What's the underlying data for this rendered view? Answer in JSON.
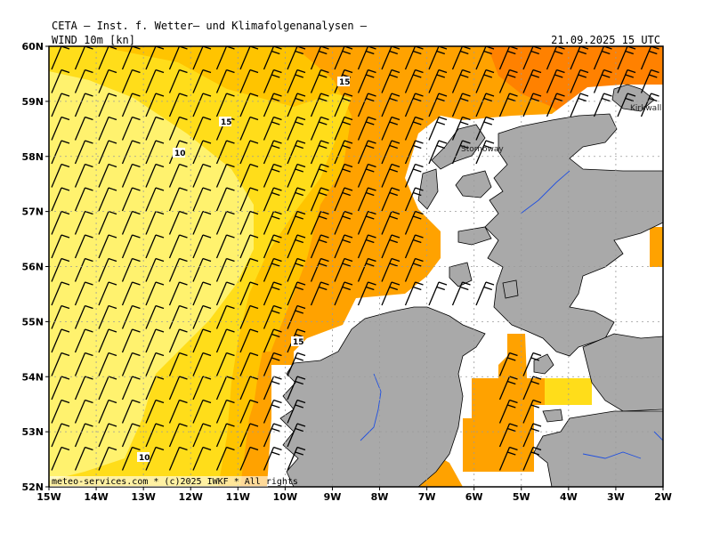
{
  "header": {
    "title": "CETA – Inst. f. Wetter– und Klimafolgenanalysen –",
    "subtitle": "WIND 10m [kn]",
    "valid_time": "21.09.2025 15 UTC"
  },
  "credit": "meteo-services.com * (c)2025 IWKF * All rights",
  "axes": {
    "lat_labels": [
      "60N",
      "59N",
      "58N",
      "57N",
      "56N",
      "55N",
      "54N",
      "53N",
      "52N"
    ],
    "lon_labels": [
      "15W",
      "14W",
      "13W",
      "12W",
      "11W",
      "10W",
      "9W",
      "8W",
      "7W",
      "6W",
      "5W",
      "4W",
      "3W",
      "2W"
    ]
  },
  "contour_labels": [
    "15",
    "15",
    "10",
    "15",
    "10"
  ],
  "places": [
    "Stornoway",
    "Kirkwall"
  ],
  "colors": {
    "band_5_10": "#fff26e",
    "band_10_15": "#ffdd1a",
    "band_15_20": "#ffc400",
    "band_20_25": "#ffa200",
    "band_25_30": "#ff8100",
    "land": "#a9a9a9",
    "water_line": "#2050e0",
    "grid": "#9a9a9a",
    "barb": "#000000"
  }
}
